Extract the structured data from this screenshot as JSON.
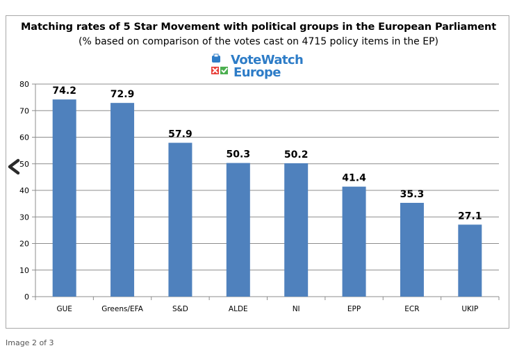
{
  "chart_data": {
    "type": "bar",
    "title": "Matching rates of 5 Star Movement with political groups in the European Parliament",
    "subtitle": "(% based on comparison of the votes cast on 4715 policy items in the EP)",
    "categories": [
      "GUE",
      "Greens/EFA",
      "S&D",
      "ALDE",
      "NI",
      "EPP",
      "ECR",
      "UKIP"
    ],
    "values": [
      74.2,
      72.9,
      57.9,
      50.3,
      50.2,
      41.4,
      35.3,
      27.1
    ],
    "value_labels": [
      "74.2",
      "72.9",
      "57.9",
      "50.3",
      "50.2",
      "41.4",
      "35.3",
      "27.1"
    ],
    "y_ticks": [
      0,
      10,
      20,
      30,
      40,
      50,
      60,
      70,
      80
    ],
    "ylim": [
      0,
      80
    ],
    "xlabel": "",
    "ylabel": "",
    "grid": true,
    "bar_color": "#4f81bd"
  },
  "logo": {
    "line1": "VoteWatch",
    "line2": "Europe"
  },
  "nav": {
    "prev_glyph": "<"
  },
  "caption": "Image 2 of 3"
}
